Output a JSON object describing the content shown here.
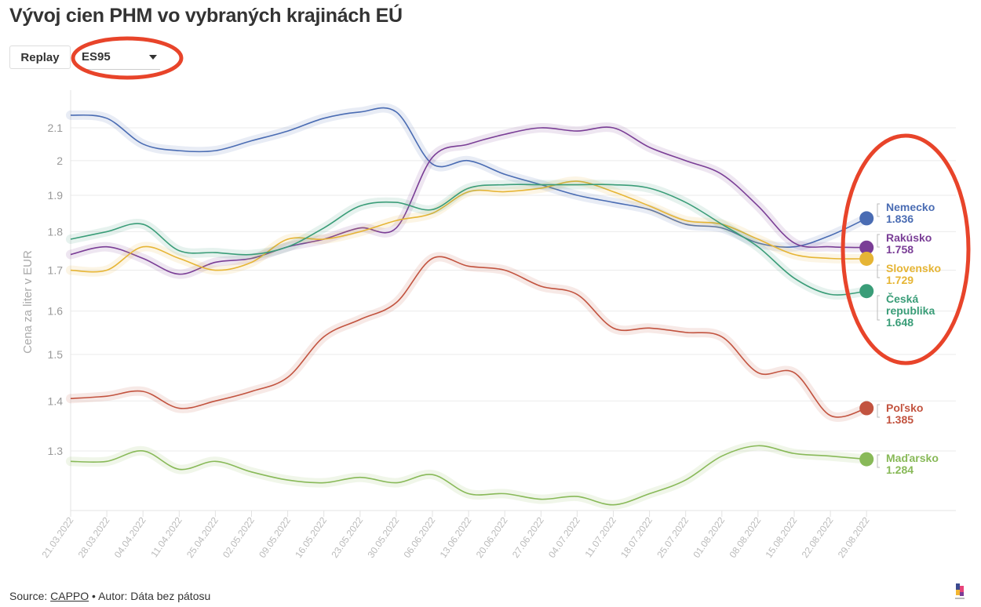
{
  "header": {
    "title": "Vývoj cien PHM vo vybraných krajinách EÚ"
  },
  "controls": {
    "replay_label": "Replay",
    "fuel_select_value": "ES95"
  },
  "annotation_color": "#e8442a",
  "chart_data": {
    "type": "line",
    "ylabel": "Cena za liter v EUR",
    "yscale": "log",
    "ylim": [
      1.19,
      2.22
    ],
    "yticks": [
      1.3,
      1.4,
      1.5,
      1.6,
      1.7,
      1.8,
      1.9,
      2,
      2.1
    ],
    "grid": true,
    "legend": "end-labels-right",
    "categories": [
      "21.03.2022",
      "28.03.2022",
      "04.04.2022",
      "11.04.2022",
      "25.04.2022",
      "02.05.2022",
      "09.05.2022",
      "16.05.2022",
      "23.05.2022",
      "30.05.2022",
      "06.06.2022",
      "13.06.2022",
      "20.06.2022",
      "27.06.2022",
      "04.07.2022",
      "11.07.2022",
      "18.07.2022",
      "25.07.2022",
      "01.08.2022",
      "08.08.2022",
      "15.08.2022",
      "22.08.2022",
      "29.08.2022"
    ],
    "series": [
      {
        "name": "Nemecko",
        "last_label": "1.836",
        "color": "#4a6cb3",
        "values": [
          2.14,
          2.13,
          2.05,
          2.03,
          2.03,
          2.06,
          2.09,
          2.13,
          2.15,
          2.15,
          1.99,
          2.0,
          1.96,
          1.93,
          1.9,
          1.88,
          1.86,
          1.82,
          1.81,
          1.77,
          1.76,
          1.79,
          1.836
        ]
      },
      {
        "name": "Rakúsko",
        "last_label": "1.758",
        "color": "#7a3e96",
        "values": [
          1.74,
          1.76,
          1.73,
          1.69,
          1.72,
          1.73,
          1.76,
          1.78,
          1.81,
          1.81,
          2.01,
          2.05,
          2.08,
          2.1,
          2.09,
          2.1,
          2.04,
          2.0,
          1.96,
          1.87,
          1.77,
          1.76,
          1.758
        ]
      },
      {
        "name": "Slovensko",
        "last_label": "1.729",
        "color": "#e6b535",
        "values": [
          1.7,
          1.7,
          1.76,
          1.73,
          1.7,
          1.72,
          1.78,
          1.78,
          1.8,
          1.83,
          1.85,
          1.91,
          1.91,
          1.92,
          1.94,
          1.91,
          1.87,
          1.83,
          1.82,
          1.78,
          1.74,
          1.73,
          1.729
        ]
      },
      {
        "name": "Česká republika",
        "last_label": "1.648",
        "color": "#3a9d78",
        "values": [
          1.78,
          1.8,
          1.82,
          1.75,
          1.745,
          1.74,
          1.76,
          1.81,
          1.87,
          1.88,
          1.86,
          1.92,
          1.93,
          1.93,
          1.93,
          1.93,
          1.92,
          1.88,
          1.82,
          1.76,
          1.68,
          1.64,
          1.648
        ]
      },
      {
        "name": "Poľsko",
        "last_label": "1.385",
        "color": "#c2533f",
        "values": [
          1.405,
          1.41,
          1.42,
          1.385,
          1.4,
          1.42,
          1.45,
          1.54,
          1.58,
          1.62,
          1.73,
          1.71,
          1.7,
          1.66,
          1.64,
          1.56,
          1.56,
          1.55,
          1.54,
          1.46,
          1.46,
          1.37,
          1.385
        ]
      },
      {
        "name": "Maďarsko",
        "last_label": "1.284",
        "color": "#88b958",
        "values": [
          1.28,
          1.28,
          1.3,
          1.265,
          1.28,
          1.26,
          1.245,
          1.24,
          1.25,
          1.24,
          1.255,
          1.22,
          1.22,
          1.21,
          1.215,
          1.2,
          1.22,
          1.245,
          1.29,
          1.31,
          1.295,
          1.29,
          1.284
        ]
      }
    ]
  },
  "footer": {
    "source_prefix": "Source: ",
    "source_link": "CAPPO",
    "author": " • Autor: Dáta bez pátosu"
  }
}
